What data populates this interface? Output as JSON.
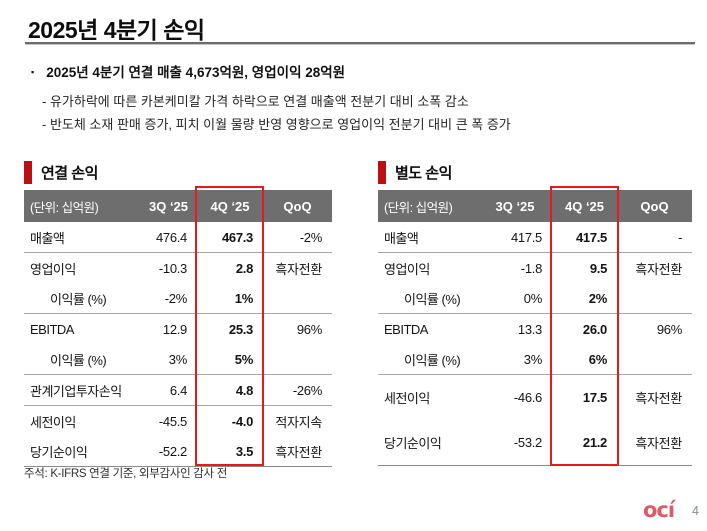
{
  "page": {
    "title": "2025년 4분기 손익",
    "page_number": "4",
    "logo_text": "ocí"
  },
  "summary": {
    "bullet_char": "▪",
    "headline": "2025년 4분기 연결 매출 4,673억원, 영업이익 28억원",
    "points": [
      "- 유가하락에 따른 카본케미칼 가격 하락으로 연결 매출액 전분기 대비 소폭 감소",
      "- 반도체 소재 판매 증가, 피치 이월 물량 반영 영향으로 영업이익 전분기 대비 큰 폭 증가"
    ]
  },
  "footnote": "주석: K-IFRS 연결 기준, 외부감사인 감사 전",
  "colors": {
    "accent_red_box": "#e8191c",
    "section_bar_red": "#bb0e15",
    "table_header_gray": "#6e6e6e",
    "logo_coral": "#e25863",
    "page_number_gray": "#7e8b98"
  },
  "tables": [
    {
      "title": "연결 손익",
      "unit_label": "(단위: 십억원)",
      "columns": [
        "3Q ‘25",
        "4Q ‘25",
        "QoQ"
      ],
      "highlighted_column": "4Q ‘25",
      "rows": [
        {
          "label": "매출액",
          "q3": "476.4",
          "q4": "467.3",
          "qoq": "-2%",
          "indent": false,
          "divider": true,
          "tall": false
        },
        {
          "label": "영업이익",
          "q3": "-10.3",
          "q4": "2.8",
          "qoq": "흑자전환",
          "indent": false,
          "divider": false,
          "tall": false
        },
        {
          "label": "이익률 (%)",
          "q3": "-2%",
          "q4": "1%",
          "qoq": "",
          "indent": true,
          "divider": true,
          "tall": false
        },
        {
          "label": "EBITDA",
          "q3": "12.9",
          "q4": "25.3",
          "qoq": "96%",
          "indent": false,
          "divider": false,
          "tall": false
        },
        {
          "label": "이익률 (%)",
          "q3": "3%",
          "q4": "5%",
          "qoq": "",
          "indent": true,
          "divider": true,
          "tall": false
        },
        {
          "label": "관계기업투자손익",
          "q3": "6.4",
          "q4": "4.8",
          "qoq": "-26%",
          "indent": false,
          "divider": true,
          "tall": false
        },
        {
          "label": "세전이익",
          "q3": "-45.5",
          "q4": "-4.0",
          "qoq": "적자지속",
          "indent": false,
          "divider": false,
          "tall": false
        },
        {
          "label": "당기순이익",
          "q3": "-52.2",
          "q4": "3.5",
          "qoq": "흑자전환",
          "indent": false,
          "divider": false,
          "tall": false
        }
      ]
    },
    {
      "title": "별도 손익",
      "unit_label": "(단위: 십억원)",
      "columns": [
        "3Q ‘25",
        "4Q ‘25",
        "QoQ"
      ],
      "highlighted_column": "4Q ‘25",
      "rows": [
        {
          "label": "매출액",
          "q3": "417.5",
          "q4": "417.5",
          "qoq": "-",
          "indent": false,
          "divider": true,
          "tall": false
        },
        {
          "label": "영업이익",
          "q3": "-1.8",
          "q4": "9.5",
          "qoq": "흑자전환",
          "indent": false,
          "divider": false,
          "tall": false
        },
        {
          "label": "이익률 (%)",
          "q3": "0%",
          "q4": "2%",
          "qoq": "",
          "indent": true,
          "divider": true,
          "tall": false
        },
        {
          "label": "EBITDA",
          "q3": "13.3",
          "q4": "26.0",
          "qoq": "96%",
          "indent": false,
          "divider": false,
          "tall": false
        },
        {
          "label": "이익률 (%)",
          "q3": "3%",
          "q4": "6%",
          "qoq": "",
          "indent": true,
          "divider": true,
          "tall": false
        },
        {
          "label": "세전이익",
          "q3": "-46.6",
          "q4": "17.5",
          "qoq": "흑자전환",
          "indent": false,
          "divider": false,
          "tall": true
        },
        {
          "label": "당기순이익",
          "q3": "-53.2",
          "q4": "21.2",
          "qoq": "흑자전환",
          "indent": false,
          "divider": false,
          "tall": true
        }
      ]
    }
  ]
}
